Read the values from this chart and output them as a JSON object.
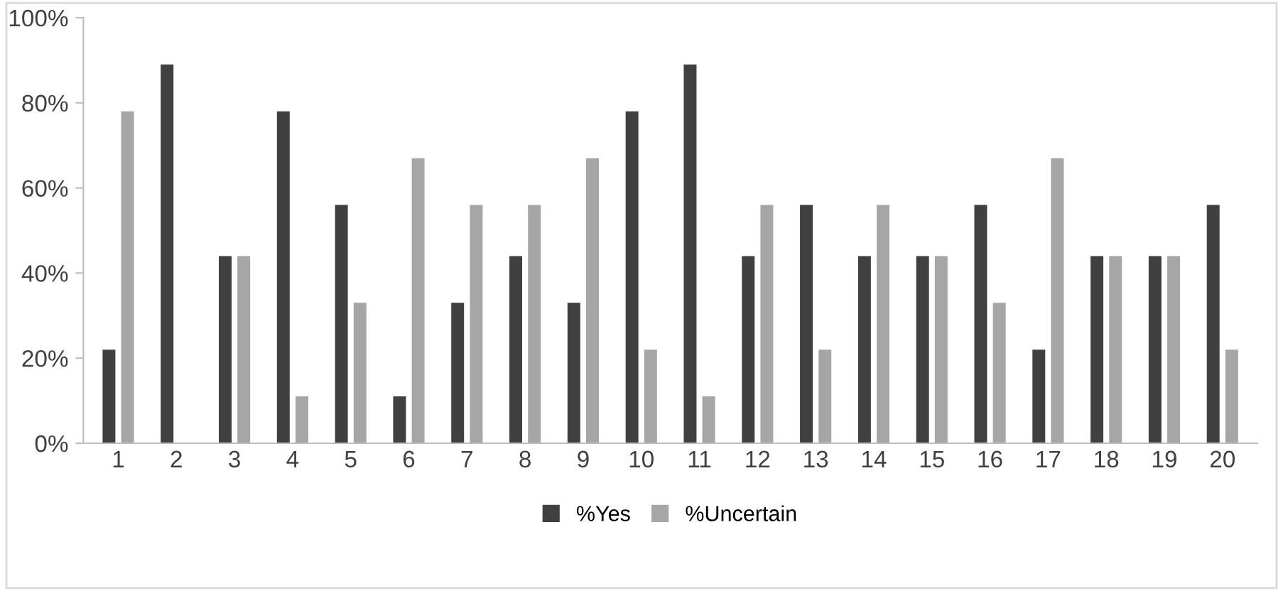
{
  "chart_data": {
    "type": "bar",
    "categories": [
      "1",
      "2",
      "3",
      "4",
      "5",
      "6",
      "7",
      "8",
      "9",
      "10",
      "11",
      "12",
      "13",
      "14",
      "15",
      "16",
      "17",
      "18",
      "19",
      "20"
    ],
    "series": [
      {
        "name": "%Yes",
        "color": "#404040",
        "values": [
          22,
          89,
          44,
          78,
          56,
          11,
          33,
          44,
          33,
          78,
          89,
          44,
          56,
          44,
          44,
          56,
          22,
          44,
          44,
          56
        ]
      },
      {
        "name": "%Uncertain",
        "color": "#a6a6a6",
        "values": [
          78,
          0,
          44,
          11,
          33,
          67,
          56,
          56,
          67,
          22,
          11,
          56,
          22,
          56,
          44,
          33,
          67,
          44,
          44,
          22
        ]
      }
    ],
    "ylim": [
      0,
      100
    ],
    "yticks": [
      {
        "value": 0,
        "label": "0%"
      },
      {
        "value": 20,
        "label": "20%"
      },
      {
        "value": 40,
        "label": "40%"
      },
      {
        "value": 60,
        "label": "60%"
      },
      {
        "value": 80,
        "label": "80%"
      },
      {
        "value": 100,
        "label": "100%"
      }
    ],
    "grid": false,
    "legend": "bottom"
  }
}
